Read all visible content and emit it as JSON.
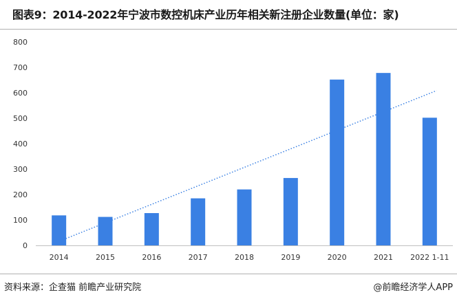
{
  "title": "图表9：2014-2022年宁波市数控机床产业历年相关新注册企业数量(单位：家)",
  "source": "资料来源：企查猫 前瞻产业研究院",
  "brand": "@前瞻经济学人APP",
  "chart_data": {
    "type": "bar",
    "title": "图表9：2014-2022年宁波市数控机床产业历年相关新注册企业数量(单位：家)",
    "xlabel": "",
    "ylabel": "",
    "categories": [
      "2014",
      "2015",
      "2016",
      "2017",
      "2018",
      "2019",
      "2020",
      "2021",
      "2022 1-11"
    ],
    "values": [
      118,
      112,
      127,
      185,
      220,
      265,
      652,
      678,
      502
    ],
    "ylim": [
      0,
      800
    ],
    "yticks": [
      "0",
      "100",
      "200",
      "300",
      "400",
      "500",
      "600",
      "700",
      "800"
    ],
    "trendline": "linear",
    "grid": false,
    "legend": "none",
    "colors": {
      "bar": "#3a80e3",
      "trend": "#3a80e3",
      "axis": "#bfbfbf"
    }
  }
}
